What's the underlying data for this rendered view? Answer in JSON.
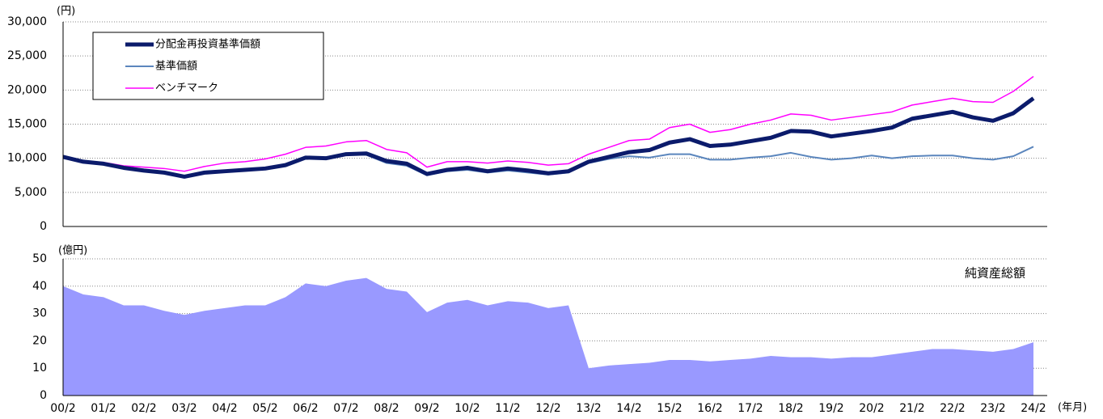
{
  "chart_data": [
    {
      "type": "line",
      "y_label": "(円)",
      "ylim": [
        0,
        30000
      ],
      "yticks": [
        0,
        {
          "value": 5000,
          "label": "5,000"
        },
        {
          "value": 10000,
          "label": "10,000"
        },
        {
          "value": 15000,
          "label": "15,000"
        },
        {
          "value": 20000,
          "label": "20,000"
        },
        {
          "value": 25000,
          "label": "25,000"
        },
        {
          "value": 30000,
          "label": "30,000"
        }
      ],
      "grid": true,
      "legend": "upper left",
      "series": [
        {
          "name": "分配金再投資基準価額",
          "color": "#0b1b6b",
          "values": [
            10200,
            9500,
            9200,
            8600,
            8200,
            7900,
            7300,
            7900,
            8100,
            8300,
            8500,
            9000,
            10100,
            10000,
            10600,
            10700,
            9600,
            9200,
            7700,
            8300,
            8600,
            8100,
            8500,
            8200,
            7800,
            8100,
            9500,
            10200,
            10900,
            11200,
            12300,
            12800,
            11800,
            12000,
            12500,
            13000,
            14000,
            13900,
            13200,
            13600,
            14000,
            14500,
            15800,
            16300,
            16800,
            16000,
            15500,
            16600,
            18800
          ]
        },
        {
          "name": "基準価額",
          "color": "#5b86bd",
          "values": [
            10200,
            9500,
            9200,
            8600,
            8200,
            7900,
            7300,
            7900,
            8100,
            8300,
            8500,
            9000,
            10100,
            10000,
            10600,
            10500,
            9300,
            8900,
            7500,
            8100,
            8300,
            7900,
            8200,
            7900,
            7600,
            7900,
            9300,
            9900,
            10300,
            10100,
            10600,
            10600,
            9800,
            9800,
            10100,
            10300,
            10800,
            10200,
            9800,
            10000,
            10400,
            10000,
            10300,
            10400,
            10400,
            10000,
            9800,
            10300,
            11700
          ]
        },
        {
          "name": "ベンチマーク",
          "color": "#ff00ff",
          "values": [
            10000,
            9600,
            9400,
            8900,
            8700,
            8500,
            8100,
            8800,
            9300,
            9500,
            9900,
            10600,
            11600,
            11800,
            12400,
            12600,
            11300,
            10800,
            8700,
            9500,
            9500,
            9300,
            9600,
            9400,
            9000,
            9200,
            10600,
            11600,
            12600,
            12800,
            14500,
            15000,
            13800,
            14200,
            15000,
            15600,
            16500,
            16300,
            15600,
            16000,
            16400,
            16800,
            17800,
            18300,
            18800,
            18300,
            18200,
            19800,
            22000
          ]
        }
      ]
    },
    {
      "type": "area",
      "y_label": "(億円)",
      "x_label": "(年月)",
      "annotation": "純資産総額",
      "categories": [
        "00/2",
        null,
        "01/2",
        null,
        "02/2",
        null,
        "03/2",
        null,
        "04/2",
        null,
        "05/2",
        null,
        "06/2",
        null,
        "07/2",
        null,
        "08/2",
        null,
        "09/2",
        null,
        "10/2",
        null,
        "11/2",
        null,
        "12/2",
        null,
        "13/2",
        null,
        "14/2",
        null,
        "15/2",
        null,
        "16/2",
        null,
        "17/2",
        null,
        "18/2",
        null,
        "19/2",
        null,
        "20/2",
        null,
        "21/2",
        null,
        "22/2",
        null,
        "23/2",
        null,
        "24/2"
      ],
      "ylim": [
        0,
        50
      ],
      "yticks": [
        0,
        10,
        20,
        30,
        40,
        50
      ],
      "grid": true,
      "series": [
        {
          "name": "純資産総額",
          "color": "#9999ff",
          "values": [
            40,
            37,
            36,
            33,
            33,
            31,
            29.5,
            31,
            32,
            33,
            33,
            36,
            41,
            40,
            42,
            43,
            39,
            38,
            30.5,
            34,
            35,
            33,
            34.5,
            34,
            32,
            33,
            10,
            11,
            11.5,
            12,
            13,
            13,
            12.5,
            13,
            13.5,
            14.5,
            14,
            14,
            13.5,
            14,
            14,
            15,
            16,
            17,
            17,
            16.5,
            16,
            17,
            19.5
          ]
        }
      ]
    }
  ]
}
